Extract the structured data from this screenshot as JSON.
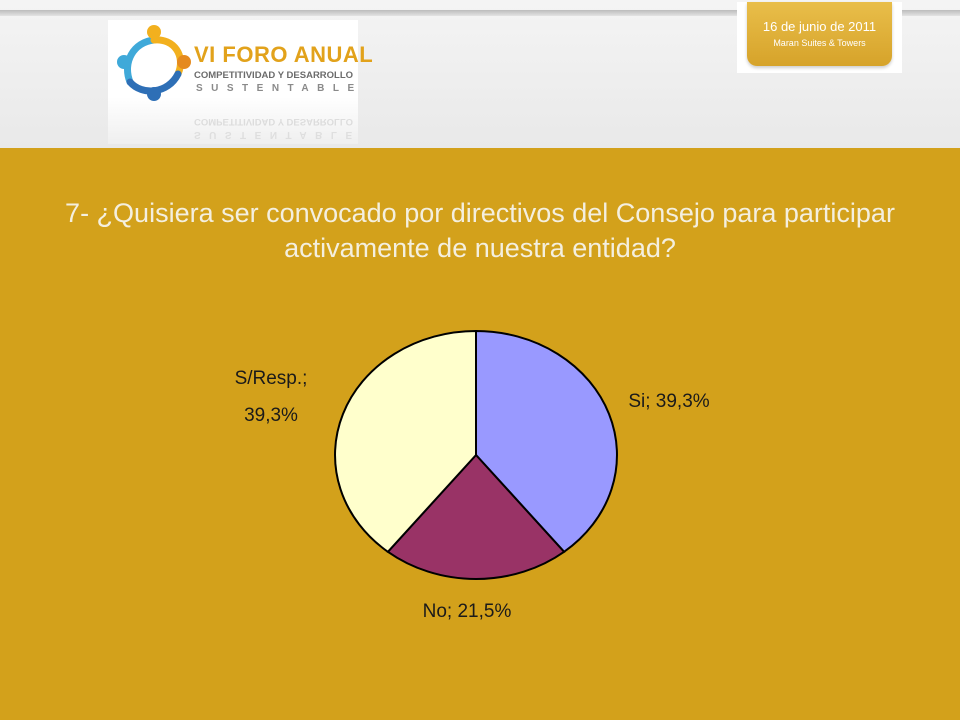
{
  "header": {
    "logo": {
      "title": "VI FORO ANUAL",
      "subtitle": "COMPETITIVIDAD Y DESARROLLO",
      "subtitle2": "SUSTENTABLE"
    },
    "badge": {
      "date": "16 de junio de 2011",
      "venue": "Maran Suites & Towers"
    }
  },
  "colors": {
    "background": "#D3A11B",
    "si": "#9999FF",
    "no": "#993366",
    "sresp": "#FFFFCC"
  },
  "chart_data": {
    "type": "pie",
    "title": "7- ¿Quisiera ser convocado por directivos del Consejo para participar activamente de nuestra entidad?",
    "slices": [
      {
        "category": "Si",
        "value": 39.3,
        "label": "Si; 39,3%",
        "color": "#9999FF"
      },
      {
        "category": "No",
        "value": 21.5,
        "label": "No; 21,5%",
        "color": "#993366"
      },
      {
        "category": "S/Resp.",
        "value": 39.3,
        "label_line1": "S/Resp.;",
        "label_line2": "39,3%",
        "color": "#FFFFCC"
      }
    ],
    "start_angle": "12 o'clock",
    "direction": "clockwise",
    "label_placement": "outside"
  }
}
